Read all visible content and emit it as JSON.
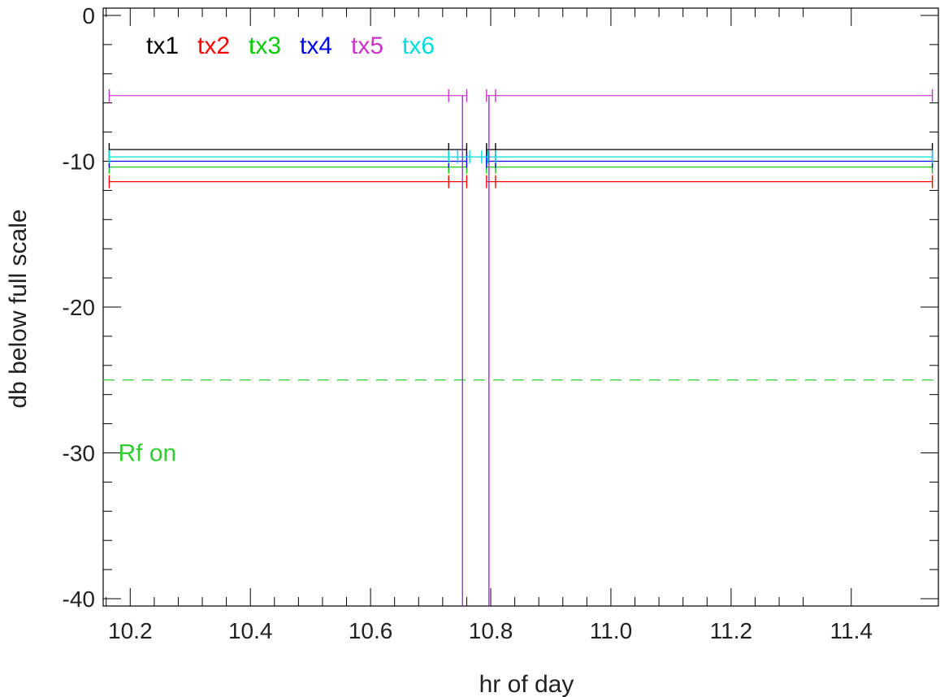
{
  "chart_data": {
    "type": "line",
    "title": "",
    "xlabel": "hr of day",
    "ylabel": "db below full scale",
    "xlim": [
      10.155,
      11.545
    ],
    "ylim": [
      -40.5,
      0.5
    ],
    "x_ticks": [
      10.2,
      10.4,
      10.6,
      10.8,
      11.0,
      11.2,
      11.4
    ],
    "x_tick_labels": [
      "10.2",
      "10.4",
      "10.6",
      "10.8",
      "11.0",
      "11.2",
      "11.4"
    ],
    "y_ticks": [
      0,
      -10,
      -20,
      -30,
      -40
    ],
    "y_tick_labels": [
      "0",
      "-10",
      "-20",
      "-30",
      "-40"
    ],
    "grid": false,
    "legend_position": "top-left",
    "legend": [
      {
        "name": "tx1",
        "color": "#000000"
      },
      {
        "name": "tx2",
        "color": "#ff0000"
      },
      {
        "name": "tx3",
        "color": "#00cc00"
      },
      {
        "name": "tx4",
        "color": "#0000ff"
      },
      {
        "name": "tx5",
        "color": "#cc33cc"
      },
      {
        "name": "tx6",
        "color": "#00dddd"
      }
    ],
    "series": [
      {
        "name": "tx1",
        "color": "#000000",
        "segments": [
          {
            "x": [
              10.165,
              10.73,
              10.76
            ],
            "y": [
              -9.2,
              -9.2,
              -9.2
            ]
          },
          {
            "x": [
              10.793,
              10.808,
              11.535
            ],
            "y": [
              -9.2,
              -9.2,
              -9.2
            ]
          }
        ]
      },
      {
        "name": "tx2",
        "color": "#ff0000",
        "segments": [
          {
            "x": [
              10.165,
              10.73,
              10.76
            ],
            "y": [
              -11.4,
              -11.4,
              -11.4
            ]
          },
          {
            "x": [
              10.793,
              10.808,
              11.535
            ],
            "y": [
              -11.4,
              -11.4,
              -11.4
            ]
          }
        ]
      },
      {
        "name": "tx3",
        "color": "#00cc00",
        "segments": [
          {
            "x": [
              10.165,
              10.73,
              10.76
            ],
            "y": [
              -10.4,
              -10.4,
              -10.4
            ]
          },
          {
            "x": [
              10.793,
              10.808,
              11.535
            ],
            "y": [
              -10.4,
              -10.4,
              -10.4
            ]
          }
        ]
      },
      {
        "name": "tx4",
        "color": "#0000ff",
        "segments": [
          {
            "x": [
              10.165,
              10.73,
              10.76
            ],
            "y": [
              -10.0,
              -10.0,
              -10.0
            ]
          },
          {
            "x": [
              10.793,
              10.808,
              11.535
            ],
            "y": [
              -10.0,
              -10.0,
              -10.0
            ]
          }
        ]
      },
      {
        "name": "tx5",
        "color": "#cc33cc",
        "segments": [
          {
            "x": [
              10.165,
              10.73,
              10.76
            ],
            "y": [
              -5.5,
              -5.5,
              -5.5
            ]
          },
          {
            "x": [
              10.793,
              10.808,
              11.535
            ],
            "y": [
              -5.5,
              -5.5,
              -5.5
            ]
          }
        ]
      },
      {
        "name": "tx6",
        "color": "#00dddd",
        "segments": [
          {
            "x": [
              10.165,
              10.73,
              10.745,
              10.765,
              10.785,
              10.795,
              10.808,
              11.535
            ],
            "y": [
              -9.7,
              -9.7,
              -9.7,
              -9.7,
              -9.7,
              -9.7,
              -9.7,
              -9.7
            ]
          }
        ]
      }
    ],
    "drops": [
      {
        "series": "tx5",
        "color": "#9933cc",
        "x": 10.753
      },
      {
        "series": "tx5",
        "color": "#9933cc",
        "x": 10.797
      }
    ],
    "threshold": {
      "y": -25,
      "color": "#33cc33",
      "style": "dashed"
    },
    "annotations": [
      {
        "text": "Rf on",
        "x": 10.18,
        "y": -30,
        "color": "#33cc33"
      }
    ]
  }
}
